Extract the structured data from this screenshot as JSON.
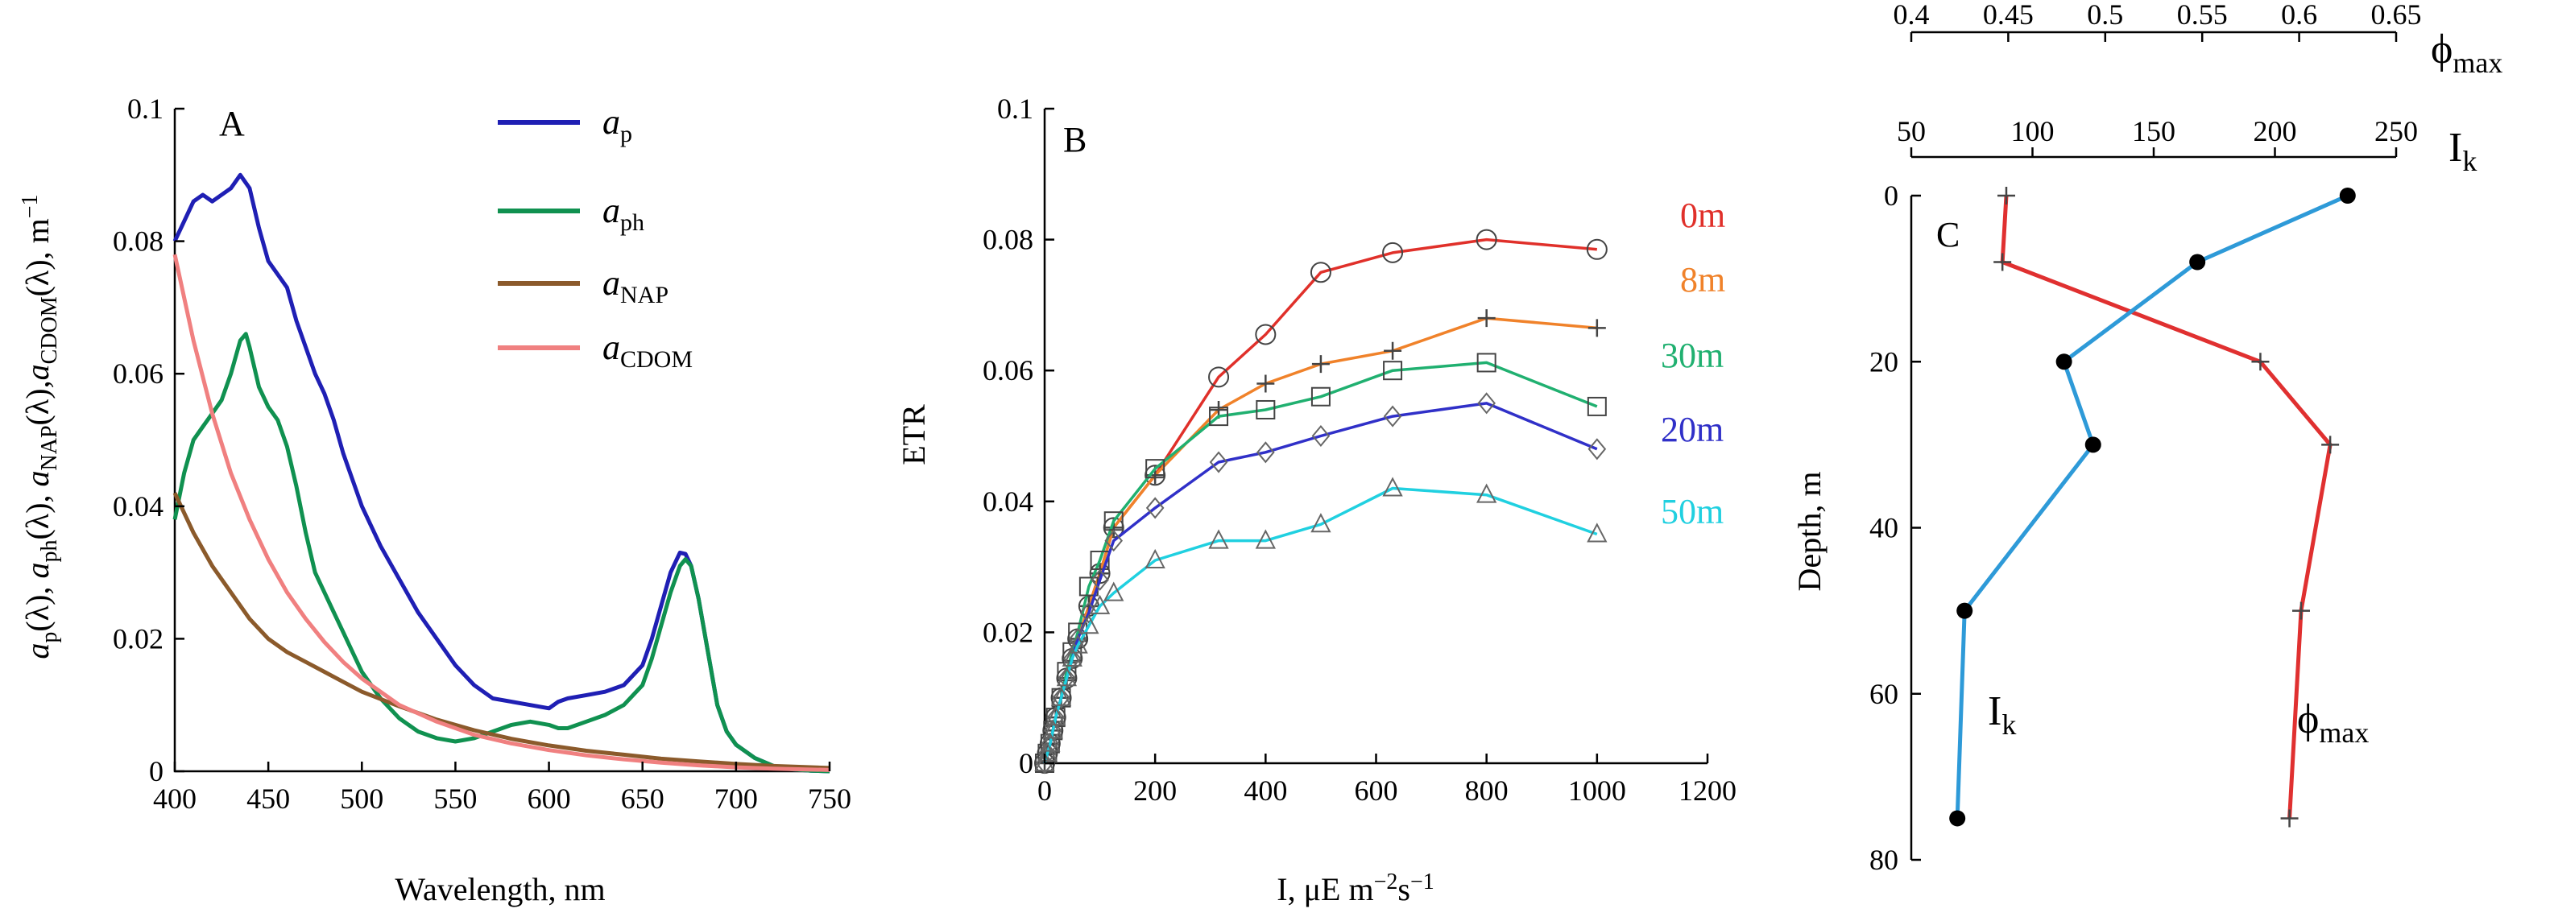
{
  "chart_data": [
    {
      "type": "line",
      "panel": "A",
      "xlabel": "Wavelength, nm",
      "ylabel": "a_p(λ), a_ph(λ), a_NAP(λ), a_CDOM(λ), m⁻¹",
      "ylabel_parts": [
        "a",
        "p",
        "(λ), ",
        "a",
        "ph",
        "(λ), ",
        "a",
        "NAP",
        "(λ),",
        "a",
        "CDOM",
        "(λ), m",
        "−1"
      ],
      "xlim": [
        400,
        750
      ],
      "ylim": [
        0,
        0.1
      ],
      "xticks": [
        "400",
        "450",
        "500",
        "550",
        "600",
        "650",
        "700",
        "750"
      ],
      "yticks": [
        "0",
        "0.02",
        "0.04",
        "0.06",
        "0.08",
        "0.1"
      ],
      "legend_position": "top-right",
      "series": [
        {
          "name": "a_p",
          "label_main": "a",
          "label_sub": "p",
          "color": "#1f1fb4",
          "x": [
            400,
            405,
            410,
            415,
            420,
            425,
            430,
            435,
            440,
            445,
            450,
            455,
            460,
            465,
            470,
            475,
            480,
            485,
            490,
            495,
            500,
            510,
            520,
            530,
            540,
            550,
            560,
            570,
            580,
            590,
            600,
            605,
            610,
            620,
            630,
            640,
            650,
            655,
            660,
            665,
            670,
            673,
            676,
            680,
            685,
            690,
            695,
            700,
            710,
            720,
            730,
            740,
            750
          ],
          "y": [
            0.08,
            0.083,
            0.086,
            0.087,
            0.086,
            0.087,
            0.088,
            0.09,
            0.088,
            0.082,
            0.077,
            0.075,
            0.073,
            0.068,
            0.064,
            0.06,
            0.057,
            0.053,
            0.048,
            0.044,
            0.04,
            0.034,
            0.029,
            0.024,
            0.02,
            0.016,
            0.013,
            0.011,
            0.0105,
            0.01,
            0.0095,
            0.0105,
            0.011,
            0.0115,
            0.012,
            0.013,
            0.016,
            0.02,
            0.025,
            0.03,
            0.033,
            0.0328,
            0.031,
            0.026,
            0.018,
            0.01,
            0.006,
            0.004,
            0.002,
            0.0008,
            0.0003,
            0.0001,
            0.0
          ]
        },
        {
          "name": "a_ph",
          "label_main": "a",
          "label_sub": "ph",
          "color": "#109150",
          "x": [
            400,
            405,
            410,
            415,
            420,
            425,
            430,
            435,
            438,
            440,
            445,
            450,
            455,
            460,
            465,
            470,
            475,
            480,
            485,
            490,
            495,
            500,
            510,
            520,
            530,
            540,
            550,
            560,
            570,
            580,
            590,
            600,
            605,
            610,
            620,
            630,
            640,
            650,
            655,
            660,
            665,
            670,
            673,
            676,
            680,
            685,
            690,
            695,
            700,
            710,
            720,
            730,
            740,
            750
          ],
          "y": [
            0.038,
            0.045,
            0.05,
            0.052,
            0.054,
            0.056,
            0.06,
            0.065,
            0.066,
            0.064,
            0.058,
            0.055,
            0.053,
            0.049,
            0.043,
            0.036,
            0.03,
            0.027,
            0.024,
            0.021,
            0.018,
            0.015,
            0.011,
            0.008,
            0.006,
            0.005,
            0.0045,
            0.005,
            0.006,
            0.007,
            0.0075,
            0.007,
            0.0065,
            0.0065,
            0.0075,
            0.0085,
            0.01,
            0.013,
            0.017,
            0.022,
            0.027,
            0.031,
            0.032,
            0.031,
            0.026,
            0.018,
            0.01,
            0.006,
            0.004,
            0.002,
            0.0008,
            0.0003,
            0.0001,
            0.0
          ]
        },
        {
          "name": "a_NAP",
          "label_main": "a",
          "label_sub": "NAP",
          "color": "#8b5a2b",
          "x": [
            400,
            410,
            420,
            430,
            440,
            450,
            460,
            470,
            480,
            490,
            500,
            520,
            540,
            560,
            580,
            600,
            620,
            640,
            660,
            680,
            700,
            720,
            750
          ],
          "y": [
            0.042,
            0.036,
            0.031,
            0.027,
            0.023,
            0.02,
            0.018,
            0.0165,
            0.015,
            0.0135,
            0.012,
            0.0098,
            0.0078,
            0.0062,
            0.0049,
            0.0039,
            0.0031,
            0.0025,
            0.0019,
            0.0015,
            0.0011,
            0.0008,
            0.0005
          ]
        },
        {
          "name": "a_CDOM",
          "label_main": "a",
          "label_sub": "CDOM",
          "color": "#f08080",
          "x": [
            400,
            410,
            420,
            430,
            440,
            450,
            460,
            470,
            480,
            490,
            500,
            520,
            540,
            560,
            580,
            600,
            620,
            640,
            660,
            680,
            700,
            720,
            750
          ],
          "y": [
            0.078,
            0.065,
            0.054,
            0.045,
            0.038,
            0.032,
            0.027,
            0.023,
            0.0195,
            0.0165,
            0.014,
            0.01,
            0.0075,
            0.0055,
            0.0042,
            0.0032,
            0.0024,
            0.0018,
            0.0013,
            0.0009,
            0.0006,
            0.0004,
            0.0002
          ]
        }
      ]
    },
    {
      "type": "line",
      "panel": "B",
      "xlabel_main": "I, μE m",
      "xlabel_sup1": "−2",
      "xlabel_mid": "s",
      "xlabel_sup2": "−1",
      "ylabel": "ETR",
      "xlim": [
        0,
        1200
      ],
      "ylim": [
        0,
        0.1
      ],
      "xticks": [
        "0",
        "200",
        "400",
        "600",
        "800",
        "1000",
        "1200"
      ],
      "yticks": [
        "0",
        "0.02",
        "0.04",
        "0.06",
        "0.08",
        "0.1"
      ],
      "series": [
        {
          "name": "0m",
          "color": "#e0302a",
          "marker": "circle",
          "x": [
            0,
            5,
            10,
            15,
            20,
            30,
            40,
            50,
            60,
            80,
            100,
            125,
            200,
            315,
            400,
            500,
            630,
            800,
            1000
          ],
          "y": [
            0,
            0.0015,
            0.003,
            0.005,
            0.007,
            0.01,
            0.013,
            0.016,
            0.019,
            0.024,
            0.029,
            0.036,
            0.044,
            0.059,
            0.0655,
            0.075,
            0.078,
            0.08,
            0.0785
          ]
        },
        {
          "name": "8m",
          "color": "#f0822a",
          "marker": "plus",
          "x": [
            0,
            5,
            10,
            15,
            20,
            30,
            40,
            50,
            60,
            80,
            100,
            125,
            200,
            315,
            400,
            500,
            630,
            800,
            1000
          ],
          "y": [
            0,
            0.0015,
            0.003,
            0.005,
            0.007,
            0.01,
            0.013,
            0.016,
            0.019,
            0.024,
            0.029,
            0.036,
            0.044,
            0.054,
            0.058,
            0.061,
            0.063,
            0.068,
            0.0665
          ]
        },
        {
          "name": "30m",
          "color": "#20b070",
          "marker": "square",
          "x": [
            0,
            5,
            10,
            15,
            20,
            30,
            40,
            50,
            60,
            80,
            100,
            125,
            200,
            315,
            400,
            500,
            630,
            800,
            1000
          ],
          "y": [
            0,
            0.0015,
            0.003,
            0.005,
            0.007,
            0.01,
            0.014,
            0.017,
            0.02,
            0.027,
            0.031,
            0.037,
            0.045,
            0.053,
            0.054,
            0.056,
            0.06,
            0.0612,
            0.0545
          ]
        },
        {
          "name": "20m",
          "color": "#3030c8",
          "marker": "diamond",
          "x": [
            0,
            5,
            10,
            15,
            20,
            30,
            40,
            50,
            60,
            80,
            100,
            125,
            200,
            315,
            400,
            500,
            630,
            800,
            1000
          ],
          "y": [
            0,
            0.0015,
            0.003,
            0.005,
            0.007,
            0.01,
            0.013,
            0.016,
            0.019,
            0.023,
            0.028,
            0.034,
            0.039,
            0.046,
            0.0475,
            0.05,
            0.053,
            0.055,
            0.048
          ]
        },
        {
          "name": "50m",
          "color": "#20d0e0",
          "marker": "triangle",
          "x": [
            0,
            5,
            10,
            15,
            20,
            30,
            40,
            50,
            60,
            80,
            100,
            125,
            200,
            315,
            400,
            500,
            630,
            800,
            1000
          ],
          "y": [
            0,
            0.0015,
            0.003,
            0.005,
            0.007,
            0.01,
            0.013,
            0.016,
            0.018,
            0.021,
            0.024,
            0.026,
            0.031,
            0.034,
            0.034,
            0.0365,
            0.042,
            0.041,
            0.035
          ]
        }
      ]
    },
    {
      "type": "line",
      "panel": "C",
      "ylabel": "Depth, m",
      "ylim": [
        0,
        80
      ],
      "yticks": [
        "0",
        "20",
        "40",
        "60",
        "80"
      ],
      "phi_axis": {
        "label_main": "ϕ",
        "label_sub": "max",
        "lim": [
          0.4,
          0.65
        ],
        "ticks": [
          "0.4",
          "0.45",
          "0.5",
          "0.55",
          "0.6",
          "0.65"
        ]
      },
      "ik_axis": {
        "label_main": "I",
        "label_sub": "k",
        "lim": [
          50,
          250
        ],
        "ticks": [
          "50",
          "100",
          "150",
          "200",
          "250"
        ]
      },
      "series": [
        {
          "name": "ϕmax",
          "label_main": "ϕ",
          "label_sub": "max",
          "axis": "phi",
          "color": "#e03030",
          "marker": "plus",
          "depth": [
            0,
            8,
            20,
            30,
            50,
            75
          ],
          "values": [
            0.449,
            0.447,
            0.58,
            0.616,
            0.601,
            0.595
          ]
        },
        {
          "name": "Ik",
          "label_main": "I",
          "label_sub": "k",
          "axis": "ik",
          "color": "#2e9ad8",
          "marker": "dot",
          "depth": [
            0,
            8,
            20,
            30,
            50,
            75
          ],
          "values": [
            230,
            168,
            113,
            125,
            72,
            69
          ]
        }
      ]
    }
  ]
}
